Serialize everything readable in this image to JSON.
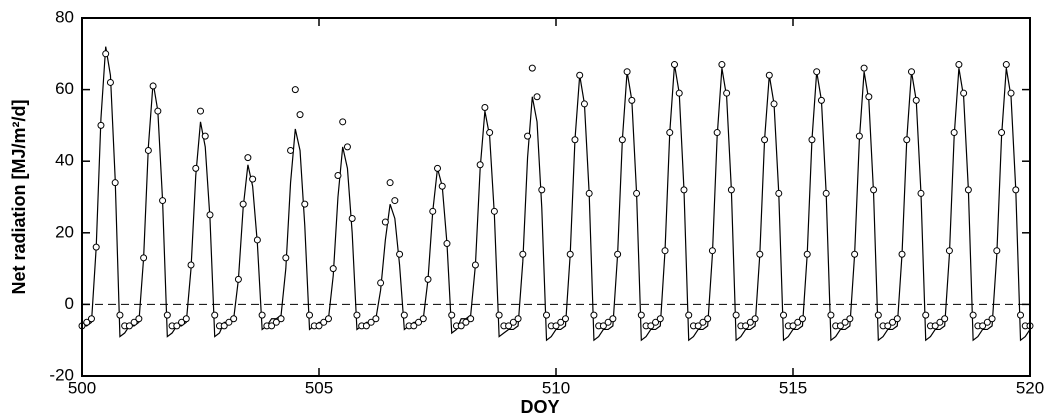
{
  "chart_data": {
    "type": "line",
    "xlabel": "DOY",
    "ylabel": "Net radiation [MJ/m²/d]",
    "xlim": [
      500,
      520
    ],
    "ylim": [
      -20,
      80
    ],
    "xticks": [
      500,
      505,
      510,
      515,
      520
    ],
    "yticks": [
      -20,
      0,
      20,
      40,
      60,
      80
    ],
    "reference_line": 0,
    "x": [
      500,
      500.1,
      500.2,
      500.3,
      500.4,
      500.5,
      500.6,
      500.7,
      500.8,
      500.9,
      501,
      501.1,
      501.2,
      501.3,
      501.4,
      501.5,
      501.6,
      501.7,
      501.8,
      501.9,
      502,
      502.1,
      502.2,
      502.3,
      502.4,
      502.5,
      502.6,
      502.7,
      502.8,
      502.9,
      503,
      503.1,
      503.2,
      503.3,
      503.4,
      503.5,
      503.6,
      503.7,
      503.8,
      503.9,
      504,
      504.1,
      504.2,
      504.3,
      504.4,
      504.5,
      504.6,
      504.7,
      504.8,
      504.9,
      505,
      505.1,
      505.2,
      505.3,
      505.4,
      505.5,
      505.6,
      505.7,
      505.8,
      505.9,
      506,
      506.1,
      506.2,
      506.3,
      506.4,
      506.5,
      506.6,
      506.7,
      506.8,
      506.9,
      507,
      507.1,
      507.2,
      507.3,
      507.4,
      507.5,
      507.6,
      507.7,
      507.8,
      507.9,
      508,
      508.1,
      508.2,
      508.3,
      508.4,
      508.5,
      508.6,
      508.7,
      508.8,
      508.9,
      509,
      509.1,
      509.2,
      509.3,
      509.4,
      509.5,
      509.6,
      509.7,
      509.8,
      509.9,
      510,
      510.1,
      510.2,
      510.3,
      510.4,
      510.5,
      510.6,
      510.7,
      510.8,
      510.9,
      511,
      511.1,
      511.2,
      511.3,
      511.4,
      511.5,
      511.6,
      511.7,
      511.8,
      511.9,
      512,
      512.1,
      512.2,
      512.3,
      512.4,
      512.5,
      512.6,
      512.7,
      512.8,
      512.9,
      513,
      513.1,
      513.2,
      513.3,
      513.4,
      513.5,
      513.6,
      513.7,
      513.8,
      513.9,
      514,
      514.1,
      514.2,
      514.3,
      514.4,
      514.5,
      514.6,
      514.7,
      514.8,
      514.9,
      515,
      515.1,
      515.2,
      515.3,
      515.4,
      515.5,
      515.6,
      515.7,
      515.8,
      515.9,
      516,
      516.1,
      516.2,
      516.3,
      516.4,
      516.5,
      516.6,
      516.7,
      516.8,
      516.9,
      517,
      517.1,
      517.2,
      517.3,
      517.4,
      517.5,
      517.6,
      517.7,
      517.8,
      517.9,
      518,
      518.1,
      518.2,
      518.3,
      518.4,
      518.5,
      518.6,
      518.7,
      518.8,
      518.9,
      519,
      519.1,
      519.2,
      519.3,
      519.4,
      519.5,
      519.6,
      519.7,
      519.8,
      519.9,
      520
    ],
    "series": [
      {
        "color": "#000000",
        "marker": "none",
        "values": [
          -6,
          -6,
          -5,
          16,
          52,
          72,
          64,
          35,
          -9,
          -8,
          -6,
          -6,
          -5,
          13,
          44,
          62,
          54,
          29,
          -9,
          -8,
          -6,
          -6,
          -5,
          10,
          36,
          51,
          44,
          24,
          -9,
          -8,
          -5,
          -5,
          -4,
          7,
          27,
          39,
          33,
          17,
          -7,
          -6,
          -4,
          -4,
          -3,
          10,
          34,
          49,
          43,
          22,
          -7,
          -6,
          -5,
          -5,
          -4,
          8,
          30,
          44,
          38,
          20,
          -7,
          -6,
          -5,
          -5,
          -4,
          4,
          18,
          28,
          24,
          11,
          -7,
          -6,
          -5,
          -5,
          -4,
          7,
          26,
          38,
          33,
          17,
          -8,
          -7,
          -4,
          -4,
          -3,
          11,
          38,
          54,
          47,
          25,
          -9,
          -8,
          -7,
          -7,
          -6,
          12,
          41,
          58,
          51,
          27,
          -10,
          -9,
          -7,
          -7,
          -6,
          14,
          46,
          64,
          56,
          31,
          -10,
          -9,
          -7,
          -7,
          -6,
          14,
          46,
          65,
          57,
          31,
          -10,
          -9,
          -7,
          -7,
          -6,
          15,
          48,
          67,
          59,
          32,
          -10,
          -9,
          -7,
          -7,
          -6,
          14,
          47,
          66,
          58,
          32,
          -10,
          -9,
          -7,
          -7,
          -6,
          14,
          46,
          64,
          56,
          31,
          -10,
          -9,
          -7,
          -7,
          -6,
          14,
          46,
          65,
          57,
          31,
          -10,
          -9,
          -7,
          -7,
          -6,
          14,
          46,
          65,
          57,
          31,
          -10,
          -9,
          -7,
          -7,
          -6,
          14,
          46,
          65,
          57,
          31,
          -10,
          -9,
          -7,
          -7,
          -6,
          14,
          47,
          66,
          58,
          32,
          -10,
          -9,
          -7,
          -7,
          -6,
          14,
          47,
          66,
          58,
          32,
          -10,
          -9,
          -7
        ]
      },
      {
        "color": "#000000",
        "marker": "circle",
        "values": [
          -6,
          -5,
          -4,
          16,
          50,
          70,
          62,
          34,
          -3,
          -6,
          -6,
          -5,
          -4,
          13,
          43,
          61,
          54,
          29,
          -3,
          -6,
          -6,
          -5,
          -4,
          11,
          38,
          54,
          47,
          25,
          -3,
          -6,
          -6,
          -5,
          -4,
          7,
          28,
          41,
          35,
          18,
          -3,
          -6,
          -6,
          -5,
          -4,
          13,
          43,
          60,
          53,
          28,
          -3,
          -6,
          -6,
          -5,
          -4,
          10,
          36,
          51,
          44,
          24,
          -3,
          -6,
          -6,
          -5,
          -4,
          6,
          23,
          34,
          29,
          14,
          -3,
          -6,
          -6,
          -5,
          -4,
          7,
          26,
          38,
          33,
          17,
          -3,
          -6,
          -6,
          -5,
          -4,
          11,
          39,
          55,
          48,
          26,
          -3,
          -6,
          -6,
          -5,
          -4,
          14,
          47,
          66,
          58,
          32,
          -3,
          -6,
          -6,
          -5,
          -4,
          14,
          46,
          64,
          56,
          31,
          -3,
          -6,
          -6,
          -5,
          -4,
          14,
          46,
          65,
          57,
          31,
          -3,
          -6,
          -6,
          -5,
          -4,
          15,
          48,
          67,
          59,
          32,
          -3,
          -6,
          -6,
          -5,
          -4,
          15,
          48,
          67,
          59,
          32,
          -3,
          -6,
          -6,
          -5,
          -4,
          14,
          46,
          64,
          56,
          31,
          -3,
          -6,
          -6,
          -5,
          -4,
          14,
          46,
          65,
          57,
          31,
          -3,
          -6,
          -6,
          -5,
          -4,
          14,
          47,
          66,
          58,
          32,
          -3,
          -6,
          -6,
          -5,
          -4,
          14,
          46,
          65,
          57,
          31,
          -3,
          -6,
          -6,
          -5,
          -4,
          15,
          48,
          67,
          59,
          32,
          -3,
          -6,
          -6,
          -5,
          -4,
          15,
          48,
          67,
          59,
          32,
          -3,
          -6,
          -6
        ]
      }
    ]
  }
}
